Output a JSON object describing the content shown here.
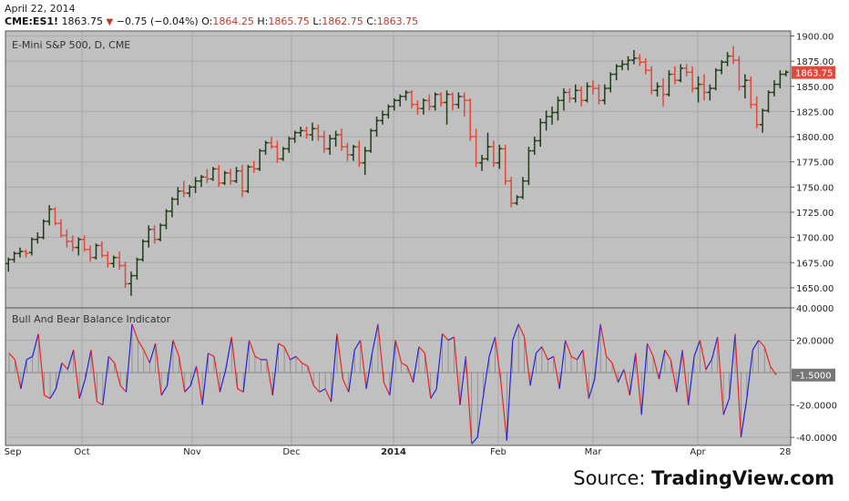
{
  "header": {
    "date": "April 22, 2014",
    "symbol": "CME:ES1!",
    "last": "1863.75",
    "change": "−0.75 (−0.04%)",
    "open_label": "O:",
    "open": "1864.25",
    "high_label": "H:",
    "high": "1865.75",
    "low_label": "L:",
    "low": "1862.75",
    "close_label": "C:",
    "close": "1863.75"
  },
  "source": {
    "label": "Source:",
    "brand": "TradingView.com"
  },
  "colors": {
    "up": "#1f3d14",
    "down": "#e0493b",
    "plot_bg": "#c0c0c0",
    "grid": "#a9a9a9",
    "ind_pos": "#2222dd",
    "ind_neg": "#ee2222",
    "last_label_bg": "#e0493b"
  },
  "chart_data": [
    {
      "type": "ohlc",
      "title": "E-Mini S&P 500, D, CME",
      "ylim": [
        1630,
        1905
      ],
      "yticks": [
        "1900.00",
        "1875.00",
        "1850.00",
        "1825.00",
        "1800.00",
        "1775.00",
        "1750.00",
        "1725.00",
        "1700.00",
        "1675.00",
        "1650.00"
      ],
      "last_value_label": "1863.75",
      "x": [
        "Sep",
        "Oct",
        "Nov",
        "Dec",
        "2014",
        "Feb",
        "Mar",
        "Apr",
        "28"
      ],
      "bars": [
        [
          1674,
          1680,
          1666,
          1678
        ],
        [
          1678,
          1686,
          1675,
          1684
        ],
        [
          1684,
          1690,
          1680,
          1686
        ],
        [
          1686,
          1688,
          1680,
          1684
        ],
        [
          1685,
          1700,
          1682,
          1698
        ],
        [
          1698,
          1705,
          1694,
          1700
        ],
        [
          1700,
          1718,
          1698,
          1716
        ],
        [
          1716,
          1732,
          1712,
          1728
        ],
        [
          1728,
          1730,
          1712,
          1714
        ],
        [
          1714,
          1718,
          1700,
          1702
        ],
        [
          1702,
          1708,
          1690,
          1696
        ],
        [
          1696,
          1702,
          1686,
          1690
        ],
        [
          1690,
          1700,
          1682,
          1698
        ],
        [
          1698,
          1702,
          1686,
          1688
        ],
        [
          1688,
          1692,
          1676,
          1680
        ],
        [
          1680,
          1694,
          1678,
          1692
        ],
        [
          1692,
          1696,
          1680,
          1682
        ],
        [
          1682,
          1686,
          1670,
          1674
        ],
        [
          1674,
          1682,
          1670,
          1680
        ],
        [
          1680,
          1686,
          1668,
          1672
        ],
        [
          1672,
          1676,
          1650,
          1654
        ],
        [
          1654,
          1666,
          1642,
          1662
        ],
        [
          1662,
          1680,
          1658,
          1678
        ],
        [
          1678,
          1698,
          1676,
          1696
        ],
        [
          1696,
          1712,
          1690,
          1708
        ],
        [
          1708,
          1712,
          1694,
          1698
        ],
        [
          1698,
          1714,
          1696,
          1712
        ],
        [
          1712,
          1728,
          1708,
          1726
        ],
        [
          1726,
          1740,
          1720,
          1738
        ],
        [
          1738,
          1750,
          1732,
          1746
        ],
        [
          1746,
          1756,
          1740,
          1744
        ],
        [
          1744,
          1752,
          1740,
          1750
        ],
        [
          1750,
          1760,
          1744,
          1756
        ],
        [
          1756,
          1762,
          1750,
          1760
        ],
        [
          1760,
          1768,
          1754,
          1758
        ],
        [
          1758,
          1770,
          1756,
          1768
        ],
        [
          1768,
          1772,
          1750,
          1754
        ],
        [
          1754,
          1766,
          1752,
          1764
        ],
        [
          1764,
          1768,
          1752,
          1756
        ],
        [
          1756,
          1770,
          1754,
          1766
        ],
        [
          1766,
          1772,
          1740,
          1746
        ],
        [
          1746,
          1772,
          1744,
          1770
        ],
        [
          1770,
          1776,
          1764,
          1768
        ],
        [
          1768,
          1788,
          1766,
          1786
        ],
        [
          1786,
          1796,
          1782,
          1794
        ],
        [
          1794,
          1800,
          1788,
          1790
        ],
        [
          1790,
          1796,
          1774,
          1778
        ],
        [
          1778,
          1790,
          1776,
          1788
        ],
        [
          1788,
          1800,
          1784,
          1798
        ],
        [
          1798,
          1806,
          1794,
          1804
        ],
        [
          1804,
          1810,
          1800,
          1806
        ],
        [
          1806,
          1810,
          1798,
          1802
        ],
        [
          1802,
          1814,
          1796,
          1808
        ],
        [
          1808,
          1812,
          1796,
          1800
        ],
        [
          1800,
          1806,
          1784,
          1788
        ],
        [
          1788,
          1802,
          1782,
          1798
        ],
        [
          1798,
          1806,
          1790,
          1802
        ],
        [
          1802,
          1808,
          1786,
          1790
        ],
        [
          1790,
          1794,
          1776,
          1782
        ],
        [
          1782,
          1792,
          1776,
          1790
        ],
        [
          1790,
          1796,
          1770,
          1774
        ],
        [
          1774,
          1790,
          1762,
          1786
        ],
        [
          1786,
          1808,
          1784,
          1806
        ],
        [
          1806,
          1820,
          1800,
          1816
        ],
        [
          1816,
          1826,
          1812,
          1822
        ],
        [
          1822,
          1832,
          1818,
          1830
        ],
        [
          1830,
          1838,
          1826,
          1836
        ],
        [
          1836,
          1842,
          1830,
          1840
        ],
        [
          1840,
          1846,
          1836,
          1844
        ],
        [
          1844,
          1846,
          1828,
          1832
        ],
        [
          1832,
          1836,
          1822,
          1828
        ],
        [
          1828,
          1838,
          1822,
          1836
        ],
        [
          1836,
          1842,
          1826,
          1830
        ],
        [
          1830,
          1844,
          1826,
          1842
        ],
        [
          1842,
          1844,
          1830,
          1834
        ],
        [
          1834,
          1846,
          1812,
          1842
        ],
        [
          1842,
          1844,
          1826,
          1832
        ],
        [
          1832,
          1844,
          1828,
          1840
        ],
        [
          1840,
          1844,
          1820,
          1836
        ],
        [
          1836,
          1838,
          1796,
          1800
        ],
        [
          1800,
          1808,
          1770,
          1774
        ],
        [
          1774,
          1782,
          1766,
          1778
        ],
        [
          1778,
          1804,
          1776,
          1790
        ],
        [
          1790,
          1796,
          1770,
          1774
        ],
        [
          1774,
          1792,
          1768,
          1788
        ],
        [
          1788,
          1792,
          1752,
          1756
        ],
        [
          1756,
          1760,
          1730,
          1734
        ],
        [
          1734,
          1742,
          1732,
          1740
        ],
        [
          1740,
          1760,
          1738,
          1756
        ],
        [
          1756,
          1790,
          1752,
          1786
        ],
        [
          1786,
          1800,
          1782,
          1796
        ],
        [
          1796,
          1818,
          1790,
          1814
        ],
        [
          1814,
          1826,
          1806,
          1820
        ],
        [
          1820,
          1830,
          1812,
          1824
        ],
        [
          1824,
          1840,
          1816,
          1836
        ],
        [
          1836,
          1848,
          1826,
          1844
        ],
        [
          1844,
          1848,
          1834,
          1838
        ],
        [
          1838,
          1852,
          1834,
          1846
        ],
        [
          1846,
          1850,
          1830,
          1836
        ],
        [
          1836,
          1854,
          1834,
          1850
        ],
        [
          1850,
          1856,
          1842,
          1848
        ],
        [
          1848,
          1852,
          1832,
          1836
        ],
        [
          1836,
          1852,
          1832,
          1848
        ],
        [
          1848,
          1864,
          1844,
          1862
        ],
        [
          1862,
          1872,
          1856,
          1870
        ],
        [
          1870,
          1876,
          1866,
          1872
        ],
        [
          1872,
          1880,
          1866,
          1876
        ],
        [
          1876,
          1886,
          1872,
          1878
        ],
        [
          1878,
          1882,
          1870,
          1874
        ],
        [
          1874,
          1878,
          1862,
          1866
        ],
        [
          1866,
          1870,
          1842,
          1846
        ],
        [
          1846,
          1854,
          1840,
          1850
        ],
        [
          1850,
          1858,
          1830,
          1842
        ],
        [
          1842,
          1866,
          1840,
          1862
        ],
        [
          1862,
          1870,
          1852,
          1856
        ],
        [
          1856,
          1872,
          1854,
          1868
        ],
        [
          1868,
          1872,
          1860,
          1864
        ],
        [
          1864,
          1870,
          1844,
          1848
        ],
        [
          1848,
          1860,
          1834,
          1852
        ],
        [
          1852,
          1862,
          1836,
          1844
        ],
        [
          1844,
          1852,
          1836,
          1848
        ],
        [
          1848,
          1868,
          1846,
          1866
        ],
        [
          1866,
          1876,
          1862,
          1874
        ],
        [
          1874,
          1884,
          1870,
          1880
        ],
        [
          1880,
          1890,
          1872,
          1876
        ],
        [
          1876,
          1880,
          1846,
          1850
        ],
        [
          1850,
          1862,
          1838,
          1856
        ],
        [
          1856,
          1860,
          1828,
          1832
        ],
        [
          1832,
          1840,
          1808,
          1812
        ],
        [
          1812,
          1828,
          1804,
          1826
        ],
        [
          1826,
          1846,
          1824,
          1844
        ],
        [
          1844,
          1856,
          1840,
          1852
        ],
        [
          1852,
          1866,
          1848,
          1862
        ],
        [
          1862,
          1866,
          1860,
          1864
        ]
      ]
    },
    {
      "type": "line",
      "title": "Bull And Bear Balance Indicator",
      "ylim": [
        -45,
        40
      ],
      "yticks": [
        "40.0000",
        "20.0000",
        "-20.0000",
        "-40.0000"
      ],
      "last_value_label": "-1.5000",
      "values": [
        12,
        8,
        -10,
        8,
        10,
        24,
        -14,
        -16,
        -10,
        6,
        2,
        14,
        -16,
        -4,
        14,
        -18,
        -20,
        10,
        6,
        -8,
        -12,
        30,
        20,
        14,
        6,
        18,
        -14,
        -8,
        20,
        10,
        -12,
        -8,
        4,
        -20,
        12,
        10,
        -12,
        2,
        22,
        -10,
        -12,
        20,
        10,
        8,
        8,
        -14,
        18,
        16,
        8,
        10,
        6,
        4,
        -8,
        -12,
        -10,
        -18,
        24,
        -4,
        -12,
        14,
        20,
        -10,
        12,
        30,
        -6,
        -14,
        20,
        6,
        4,
        -6,
        16,
        12,
        -16,
        -10,
        24,
        20,
        22,
        -20,
        10,
        -44,
        -40,
        -14,
        10,
        22,
        -6,
        -42,
        20,
        30,
        22,
        -8,
        12,
        16,
        8,
        10,
        -10,
        20,
        10,
        8,
        14,
        -16,
        -4,
        30,
        10,
        6,
        -6,
        2,
        -14,
        12,
        -26,
        18,
        10,
        -4,
        14,
        8,
        -12,
        14,
        -20,
        10,
        20,
        2,
        8,
        22,
        -26,
        -16,
        24,
        -40,
        -16,
        14,
        20,
        16,
        4,
        -1.5
      ]
    }
  ]
}
